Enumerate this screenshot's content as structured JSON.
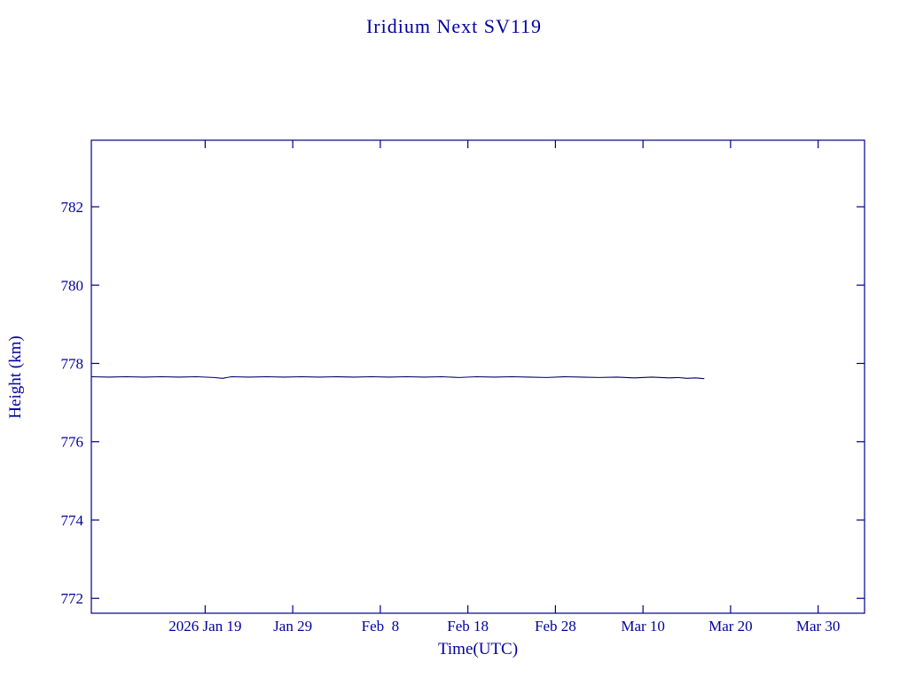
{
  "page": {
    "background": "#FFFFFF"
  },
  "colors": {
    "text": "#0000A0",
    "frame": "#00008B",
    "line": "#000066"
  },
  "chart_data": {
    "type": "line",
    "title": "Iridium Next SV119",
    "xlabel": "Time(UTC)",
    "ylabel": "Height (km)",
    "x_day_reference": "days since 2026-01-01",
    "x_ticks": [
      {
        "day": 18,
        "label": "2026 Jan 19"
      },
      {
        "day": 28,
        "label": "Jan 29"
      },
      {
        "day": 38,
        "label": "Feb  8"
      },
      {
        "day": 48,
        "label": "Feb 18"
      },
      {
        "day": 58,
        "label": "Feb 28"
      },
      {
        "day": 68,
        "label": "Mar 10"
      },
      {
        "day": 78,
        "label": "Mar 20"
      },
      {
        "day": 88,
        "label": "Mar 30"
      }
    ],
    "y_ticks": [
      772,
      774,
      776,
      778,
      780,
      782
    ],
    "xlim_days": [
      5,
      93.3
    ],
    "ylim": [
      771.62,
      783.7
    ],
    "grid": false,
    "legend": "none",
    "series": [
      {
        "name": "Height (km)",
        "points": [
          [
            5,
            777.66
          ],
          [
            7,
            777.65
          ],
          [
            9,
            777.66
          ],
          [
            11,
            777.65
          ],
          [
            13,
            777.66
          ],
          [
            15,
            777.65
          ],
          [
            17,
            777.66
          ],
          [
            19,
            777.64
          ],
          [
            20,
            777.62
          ],
          [
            21,
            777.66
          ],
          [
            23,
            777.65
          ],
          [
            25,
            777.66
          ],
          [
            27,
            777.65
          ],
          [
            29,
            777.66
          ],
          [
            31,
            777.65
          ],
          [
            33,
            777.66
          ],
          [
            35,
            777.65
          ],
          [
            37,
            777.66
          ],
          [
            39,
            777.65
          ],
          [
            41,
            777.66
          ],
          [
            43,
            777.65
          ],
          [
            45,
            777.66
          ],
          [
            47,
            777.64
          ],
          [
            49,
            777.66
          ],
          [
            51,
            777.65
          ],
          [
            53,
            777.66
          ],
          [
            55,
            777.65
          ],
          [
            57,
            777.64
          ],
          [
            59,
            777.66
          ],
          [
            61,
            777.65
          ],
          [
            63,
            777.64
          ],
          [
            65,
            777.65
          ],
          [
            67,
            777.63
          ],
          [
            69,
            777.65
          ],
          [
            71,
            777.63
          ],
          [
            72,
            777.64
          ],
          [
            73,
            777.62
          ],
          [
            74,
            777.63
          ],
          [
            75,
            777.61
          ]
        ]
      }
    ]
  }
}
